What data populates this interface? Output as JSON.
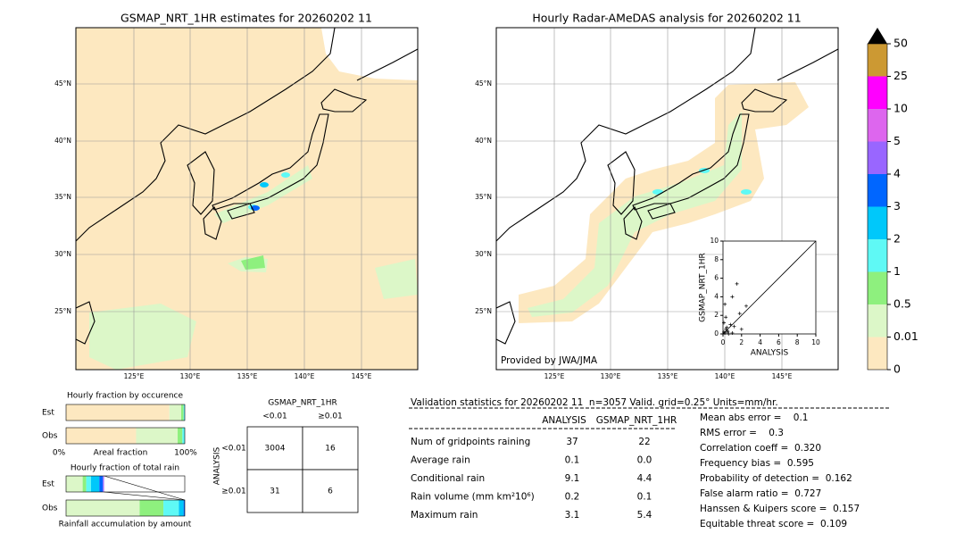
{
  "maps": [
    {
      "title": "GSMAP_NRT_1HR estimates for 20260202 11"
    },
    {
      "title": "Hourly Radar-AMeDAS analysis for 20260202 11",
      "credit": "Provided by JWA/JMA"
    }
  ],
  "lat_labels": [
    "45°N",
    "40°N",
    "35°N",
    "30°N",
    "25°N"
  ],
  "lon_labels": [
    "125°E",
    "130°E",
    "135°E",
    "140°E",
    "145°E"
  ],
  "colorbar": {
    "ticks": [
      0,
      0.01,
      0.5,
      1,
      2,
      3,
      4,
      5,
      10,
      25,
      50
    ],
    "colors": [
      "#fde8c0",
      "#dcf7c8",
      "#8ef07e",
      "#5ff9f5",
      "#00c8fa",
      "#0066ff",
      "#9966ff",
      "#dd66ee",
      "#ff00ff",
      "#cc9933"
    ],
    "extend_color": "#000000"
  },
  "chart_data": {
    "type": "scatter",
    "xlabel": "ANALYSIS",
    "ylabel": "GSMAP_NRT_1HR",
    "x": [
      0,
      0.1,
      0.2,
      0.3,
      0.5,
      0.2,
      1.5,
      1.0,
      0.3,
      0.8,
      1.2,
      2.5,
      1.8,
      0.5,
      0.1,
      1.0,
      2.0,
      0.6,
      0.4
    ],
    "y": [
      0,
      0.2,
      0.1,
      0.5,
      0.3,
      3.2,
      5.4,
      4.0,
      1.8,
      1.0,
      0.8,
      3.0,
      2.2,
      0.2,
      1.2,
      0.1,
      0.5,
      0.0,
      0.7
    ],
    "xlim": [
      0,
      10
    ],
    "ylim": [
      0,
      10
    ],
    "xticks": [
      0,
      2,
      4,
      6,
      8,
      10
    ],
    "yticks": [
      0,
      2,
      4,
      6,
      8,
      10
    ],
    "color": "#000000"
  },
  "fractions": {
    "occurrence": {
      "title": "Hourly fraction by occurence",
      "rows": [
        {
          "name": "Est",
          "values": [
            0.87,
            0.1,
            0.02,
            0.01
          ]
        },
        {
          "name": "Obs",
          "values": [
            0.59,
            0.35,
            0.04,
            0.02
          ]
        }
      ]
    },
    "axis": [
      "0%",
      "Areal fraction",
      "100%"
    ],
    "total": {
      "title": "Hourly fraction of total rain",
      "rows": [
        {
          "name": "Est",
          "values": [
            0,
            0.14,
            0.03,
            0.04,
            0.07,
            0.03,
            0.01
          ]
        },
        {
          "name": "Obs",
          "values": [
            0,
            0.62,
            0.2,
            0.13,
            0.04,
            0.01
          ]
        }
      ]
    },
    "footer": "Rainfall accumulation by amount"
  },
  "contingency": {
    "col_title": "GSMAP_NRT_1HR",
    "row_title": "ANALYSIS",
    "columns": [
      "<0.01",
      "≥0.01"
    ],
    "rows": [
      {
        "label": "<0.01",
        "cells": [
          3004,
          16
        ]
      },
      {
        "label": "≥0.01",
        "cells": [
          31,
          6
        ]
      }
    ]
  },
  "validation": {
    "title": "Validation statistics for 20260202 11  n=3057 Valid. grid=0.25° Units=mm/hr.",
    "columns": [
      "ANALYSIS",
      "GSMAP_NRT_1HR"
    ],
    "rows": [
      {
        "label": "Num of gridpoints raining",
        "values": [
          "37",
          "22"
        ]
      },
      {
        "label": "Average rain",
        "values": [
          "0.1",
          "0.0"
        ]
      },
      {
        "label": "Conditional rain",
        "values": [
          "9.1",
          "4.4"
        ]
      },
      {
        "label": "Rain volume (mm km²10⁶)",
        "values": [
          "0.2",
          "0.1"
        ]
      },
      {
        "label": "Maximum rain",
        "values": [
          "3.1",
          "5.4"
        ]
      }
    ],
    "scores": [
      "Mean abs error =    0.1",
      "RMS error =    0.3",
      "Correlation coeff =  0.320",
      "Frequency bias =  0.595",
      "Probability of detection =  0.162",
      "False alarm ratio =  0.727",
      "Hanssen & Kuipers score =  0.157",
      "Equitable threat score =  0.109"
    ]
  }
}
